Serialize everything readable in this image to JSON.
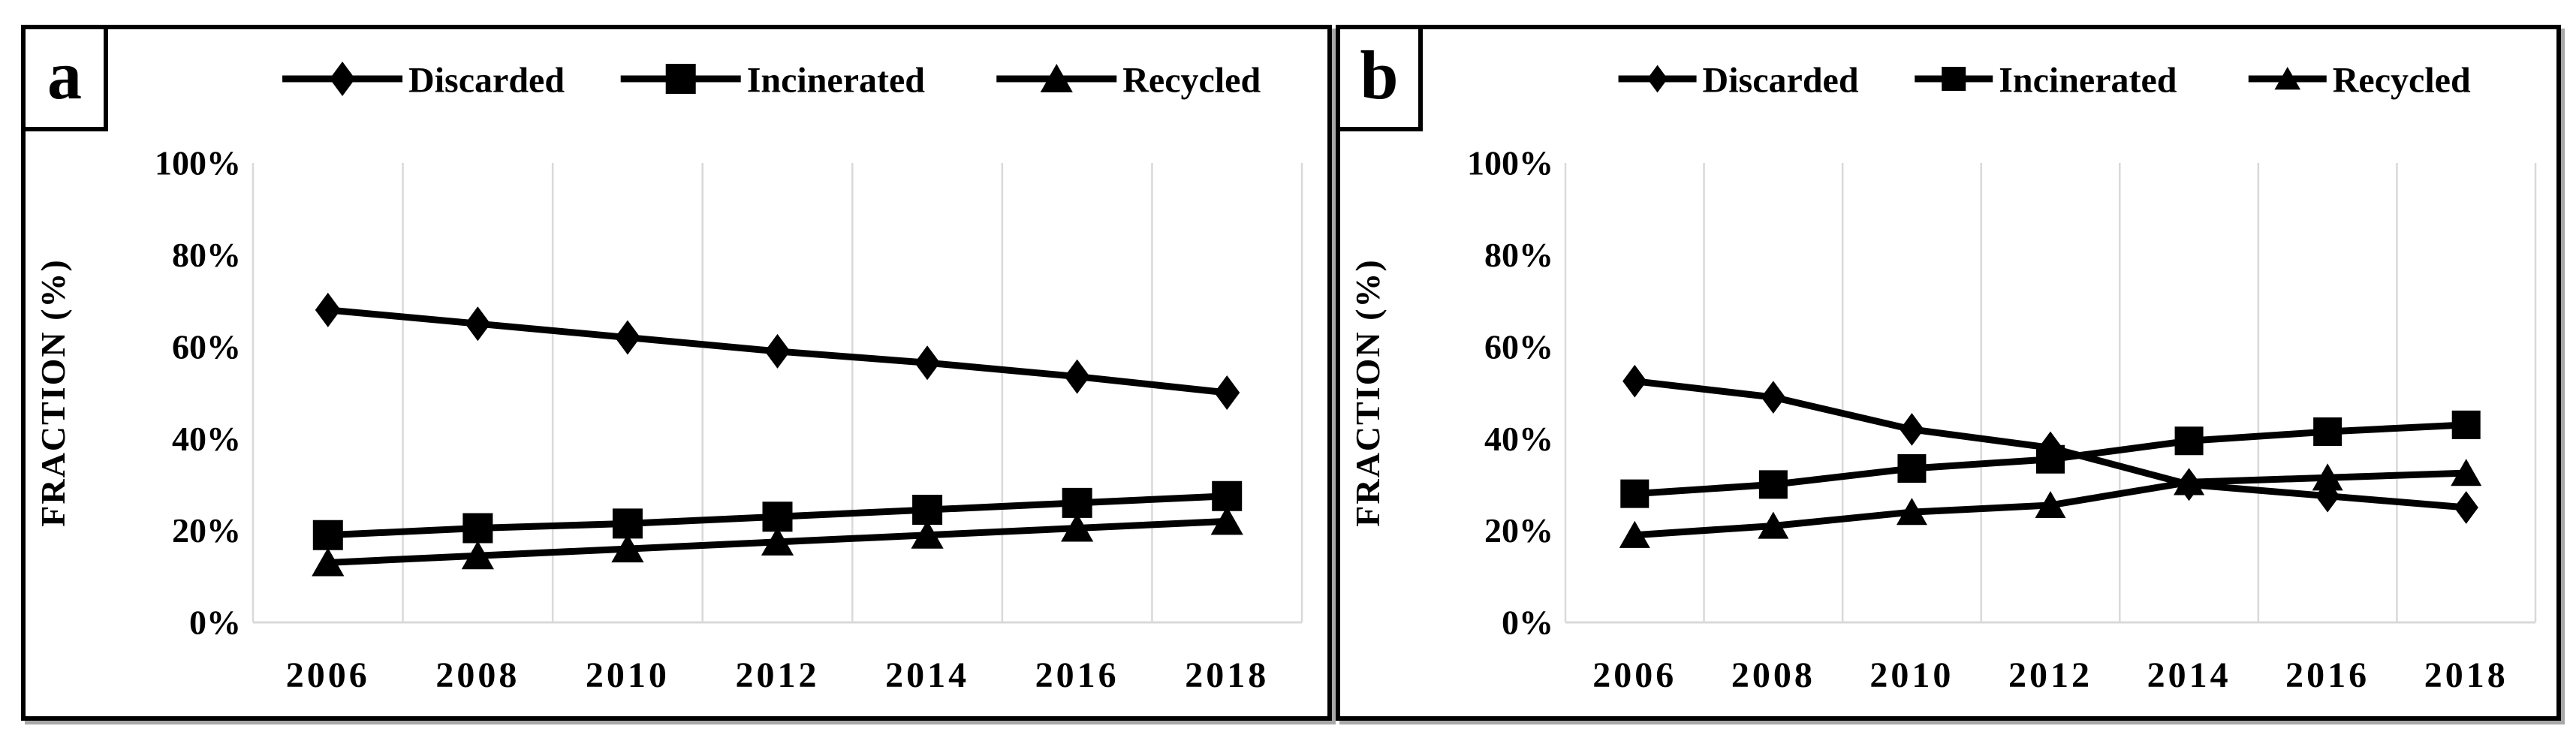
{
  "figure": {
    "background_color": "#ffffff",
    "series_color": "#000000",
    "gridline_color": "#d9d9d9",
    "shadow_color": "#a8a8a8",
    "y_axis_title": "FRACTION (%)",
    "y_tick_labels": [
      "100%",
      "80%",
      "60%",
      "40%",
      "20%",
      "0%"
    ],
    "x_tick_labels": [
      "2006",
      "2008",
      "2010",
      "2012",
      "2014",
      "2016",
      "2018"
    ],
    "legend_items": [
      {
        "label": "Discarded",
        "marker": "diamond-icon"
      },
      {
        "label": "Incinerated",
        "marker": "square-icon"
      },
      {
        "label": "Recycled",
        "marker": "triangle-icon"
      }
    ]
  },
  "chart_data": [
    {
      "type": "line",
      "panel_label": "a",
      "title": "",
      "xlabel": "",
      "ylabel": "FRACTION (%)",
      "ylim": [
        0,
        100
      ],
      "y_tick_step": 20,
      "grid": "vertical-only",
      "legend_position": "top-center",
      "categories": [
        "2006",
        "2008",
        "2010",
        "2012",
        "2014",
        "2016",
        "2018"
      ],
      "series": [
        {
          "name": "Discarded",
          "marker": "diamond",
          "values": [
            68,
            65,
            62,
            59,
            56.5,
            53.5,
            50
          ]
        },
        {
          "name": "Incinerated",
          "marker": "square",
          "values": [
            19,
            20.5,
            21.5,
            23,
            24.5,
            26,
            27.5
          ]
        },
        {
          "name": "Recycled",
          "marker": "triangle",
          "values": [
            13,
            14.5,
            16,
            17.5,
            19,
            20.5,
            22
          ]
        }
      ]
    },
    {
      "type": "line",
      "panel_label": "b",
      "title": "",
      "xlabel": "",
      "ylabel": "FRACTION (%)",
      "ylim": [
        0,
        100
      ],
      "y_tick_step": 20,
      "grid": "vertical-only",
      "legend_position": "top-center",
      "categories": [
        "2006",
        "2008",
        "2010",
        "2012",
        "2014",
        "2016",
        "2018"
      ],
      "series": [
        {
          "name": "Discarded",
          "marker": "diamond",
          "values": [
            52.5,
            49,
            42,
            38,
            30,
            27.5,
            25
          ]
        },
        {
          "name": "Incinerated",
          "marker": "square",
          "values": [
            28,
            30,
            33.5,
            35.5,
            39.5,
            41.5,
            43
          ]
        },
        {
          "name": "Recycled",
          "marker": "triangle",
          "values": [
            19,
            21,
            24,
            25.5,
            30.5,
            31.5,
            32.5
          ]
        }
      ]
    }
  ]
}
